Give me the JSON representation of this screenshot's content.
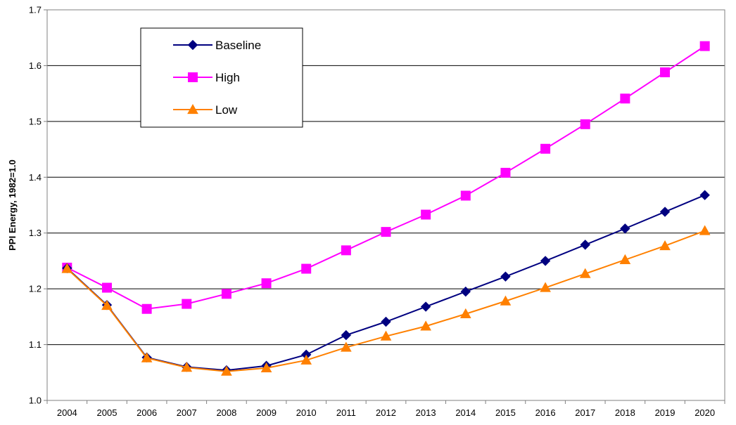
{
  "chart_data": {
    "type": "line",
    "title": "",
    "xlabel": "",
    "ylabel": "PPI Energy, 1982=1.0",
    "ylim": [
      1.0,
      1.7
    ],
    "yticks": [
      "1.0",
      "1.1",
      "1.2",
      "1.3",
      "1.4",
      "1.5",
      "1.6",
      "1.7"
    ],
    "grid": "horizontal",
    "legend_position": "top-left",
    "categories": [
      "2004",
      "2005",
      "2006",
      "2007",
      "2008",
      "2009",
      "2010",
      "2011",
      "2012",
      "2013",
      "2014",
      "2015",
      "2016",
      "2017",
      "2018",
      "2019",
      "2020"
    ],
    "series": [
      {
        "name": "Baseline",
        "color": "#000080",
        "marker": "diamond",
        "values": [
          1.237,
          1.171,
          1.077,
          1.06,
          1.054,
          1.062,
          1.082,
          1.117,
          1.141,
          1.168,
          1.195,
          1.222,
          1.25,
          1.279,
          1.308,
          1.338,
          1.368
        ]
      },
      {
        "name": "High",
        "color": "#FF00FF",
        "marker": "square",
        "values": [
          1.238,
          1.202,
          1.164,
          1.173,
          1.191,
          1.21,
          1.236,
          1.269,
          1.302,
          1.333,
          1.367,
          1.408,
          1.451,
          1.495,
          1.541,
          1.588,
          1.635
        ]
      },
      {
        "name": "Low",
        "color": "#FF8000",
        "marker": "triangle",
        "values": [
          1.236,
          1.17,
          1.076,
          1.059,
          1.052,
          1.058,
          1.072,
          1.095,
          1.115,
          1.133,
          1.155,
          1.178,
          1.202,
          1.227,
          1.252,
          1.277,
          1.304
        ]
      }
    ]
  }
}
